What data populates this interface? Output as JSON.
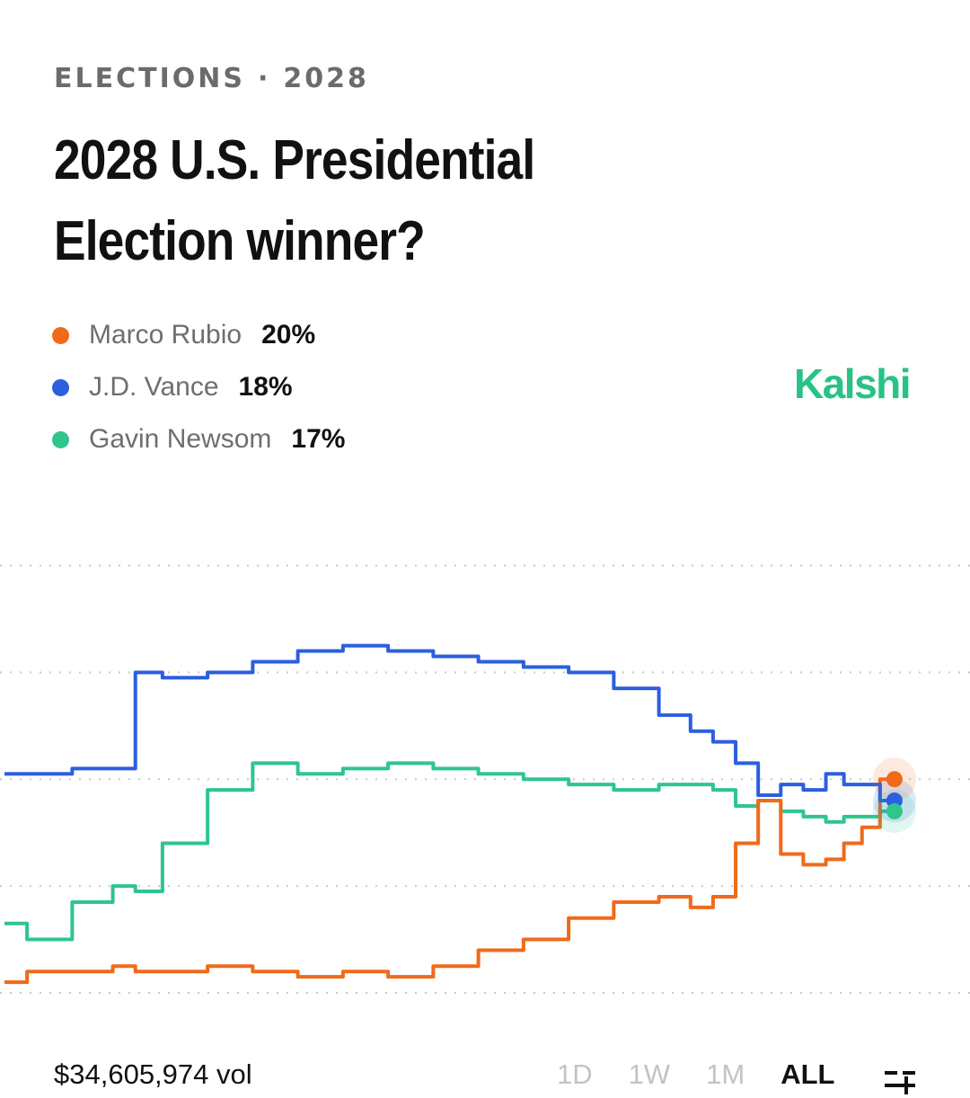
{
  "header": {
    "category": "ELECTIONS",
    "separator": "·",
    "year": "2028",
    "title": "2028 U.S. Presidential Election winner?"
  },
  "brand": {
    "name": "Kalshi",
    "color": "#28c285"
  },
  "legend": [
    {
      "name": "Marco Rubio",
      "pct": "20%",
      "color": "#f06a1a"
    },
    {
      "name": "J.D. Vance",
      "pct": "18%",
      "color": "#2b5fe0"
    },
    {
      "name": "Gavin Newsom",
      "pct": "17%",
      "color": "#2fc58d"
    }
  ],
  "footer": {
    "volume": "$34,605,974 vol",
    "ranges": [
      "1D",
      "1W",
      "1M",
      "ALL"
    ],
    "active_range": "ALL",
    "settings_icon": "settings-sliders-icon"
  },
  "chart_data": {
    "type": "line",
    "x": [
      0,
      5,
      10,
      14,
      15,
      20,
      25,
      30,
      35,
      40,
      45,
      50,
      55,
      60,
      65,
      70,
      75,
      77,
      80,
      82,
      85,
      87,
      90,
      92,
      94,
      96,
      98
    ],
    "xlim": [
      0,
      100
    ],
    "ylim": [
      0,
      45
    ],
    "gridlines": [
      0,
      10,
      20,
      30,
      40
    ],
    "grid": true,
    "legend_position": "top-left",
    "series": [
      {
        "name": "Marco Rubio",
        "color": "#f06a1a",
        "values": [
          1,
          2,
          2,
          2.5,
          2,
          2,
          2.5,
          2,
          1.5,
          2,
          1.5,
          2.5,
          4,
          5,
          7,
          8.5,
          9,
          8,
          9,
          14,
          18,
          13,
          12,
          12.5,
          14,
          15.5,
          20
        ]
      },
      {
        "name": "J.D. Vance",
        "color": "#2b5fe0",
        "values": [
          20.5,
          20.5,
          21,
          21,
          30,
          29.5,
          30,
          31,
          32,
          32.5,
          32,
          31.5,
          31,
          30.5,
          30,
          28.5,
          26,
          24.5,
          23.5,
          21.5,
          18.5,
          19.5,
          19,
          20.5,
          19.5,
          19.5,
          18
        ]
      },
      {
        "name": "Gavin Newsom",
        "color": "#2fc58d",
        "values": [
          6.5,
          5,
          8.5,
          10,
          9.5,
          14,
          19,
          21.5,
          20.5,
          21,
          21.5,
          21,
          20.5,
          20,
          19.5,
          19,
          19.5,
          19.5,
          19,
          17.5,
          18,
          17,
          16.5,
          16,
          16.5,
          16.5,
          17
        ]
      }
    ]
  }
}
